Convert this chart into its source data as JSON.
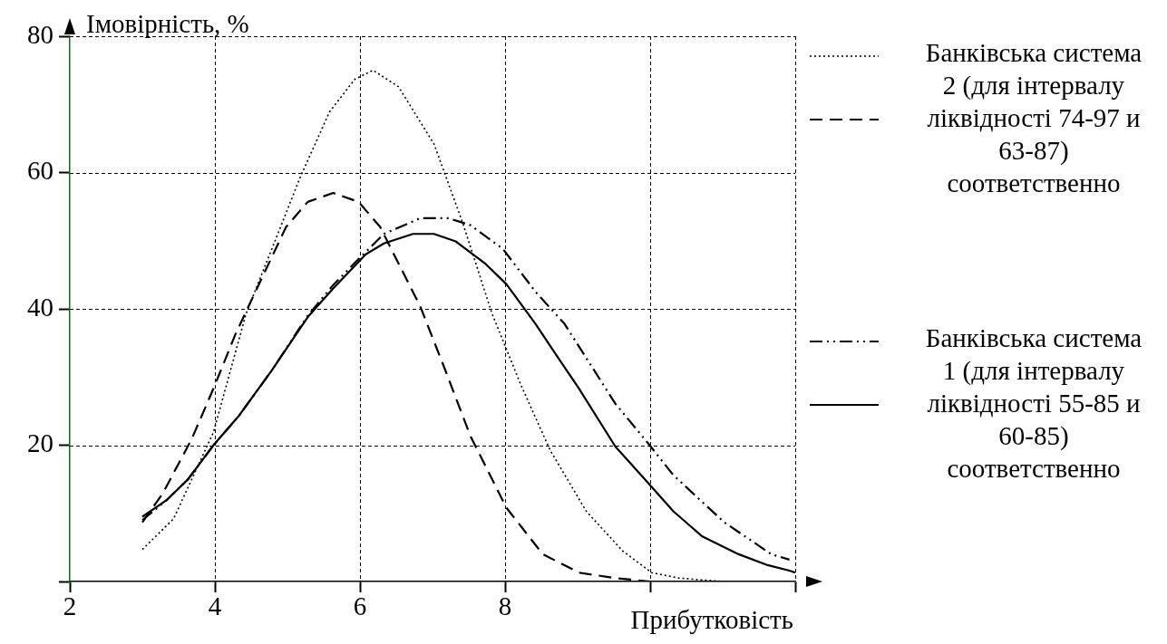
{
  "chart_data": {
    "type": "line",
    "xlabel": "Прибутковість",
    "ylabel": "Імовірність, %",
    "xlim": [
      2,
      12
    ],
    "ylim": [
      0,
      80
    ],
    "xticks": [
      2,
      4,
      6,
      8,
      {
        "value": 10,
        "label": null
      },
      {
        "value": 12,
        "label": null
      }
    ],
    "yticks": [
      {
        "value": 0,
        "label": null
      },
      20,
      40,
      60,
      80
    ],
    "grid": true,
    "legend": false,
    "marker": "none",
    "annotations": [
      "Банківська система 2 (для інтервалу ліквідності 74-97 и 63-87) соответственно",
      "Банківська система 1 (для інтервалу ліквідності 55-85 и 60-85) соответственно"
    ],
    "series": [
      {
        "color": "#000000",
        "line_style": "dotted",
        "x": [
          3.0,
          3.43,
          3.98,
          4.43,
          4.83,
          5.18,
          5.58,
          5.93,
          6.18,
          6.53,
          7.02,
          7.42,
          7.82,
          8.22,
          8.62,
          9.12,
          9.62,
          10.02,
          10.4,
          11.0,
          11.5
        ],
        "values": [
          4.7,
          9.2,
          21.9,
          39.3,
          50,
          59.4,
          68.9,
          73.7,
          75,
          72.6,
          64.2,
          52.5,
          39.3,
          28.8,
          19.3,
          10.3,
          4.5,
          1.3,
          0.5,
          0,
          0
        ]
      },
      {
        "color": "#000000",
        "line_style": "dashed",
        "x": [
          3.0,
          3.28,
          3.68,
          3.98,
          4.28,
          4.58,
          4.98,
          5.28,
          5.63,
          5.98,
          6.28,
          6.43,
          6.83,
          7.18,
          7.52,
          8.02,
          8.52,
          9.02,
          9.52,
          10.0,
          11.0,
          12.0
        ],
        "values": [
          8.7,
          12.9,
          20.9,
          28.3,
          36.2,
          43,
          52,
          55.7,
          57,
          55.7,
          52,
          48.8,
          40.4,
          30.9,
          21.4,
          10.8,
          4,
          1.3,
          0.5,
          0,
          0,
          0
        ]
      },
      {
        "color": "#000000",
        "line_style": "dashdot",
        "x": [
          3.0,
          3.33,
          3.63,
          3.98,
          4.33,
          4.78,
          5.28,
          5.63,
          5.98,
          6.33,
          6.83,
          7.22,
          7.52,
          7.97,
          8.42,
          8.82,
          9.52,
          9.97,
          10.32,
          11.02,
          11.67,
          11.92
        ],
        "values": [
          9,
          11.9,
          15,
          20,
          24.3,
          30.9,
          39,
          43.5,
          47.3,
          51,
          53.3,
          53.3,
          52.3,
          48.8,
          42.5,
          37.8,
          26.1,
          20.3,
          15.6,
          8.7,
          4,
          3.2
        ]
      },
      {
        "color": "#000000",
        "line_style": "solid",
        "x": [
          3.0,
          3.33,
          3.63,
          3.98,
          4.33,
          4.78,
          5.28,
          5.63,
          6.08,
          6.33,
          6.73,
          7.02,
          7.32,
          7.72,
          8.02,
          8.42,
          8.72,
          9.02,
          9.52,
          9.97,
          10.32,
          10.72,
          11.22,
          11.62,
          11.92,
          12.0
        ],
        "values": [
          9.5,
          11.9,
          15,
          20,
          24.3,
          30.9,
          38.8,
          43,
          48,
          49.6,
          51,
          51,
          49.9,
          46.7,
          43.6,
          37.8,
          33,
          28.3,
          19.8,
          14.5,
          10.3,
          6.6,
          4,
          2.4,
          1.6,
          1.3
        ]
      }
    ]
  }
}
